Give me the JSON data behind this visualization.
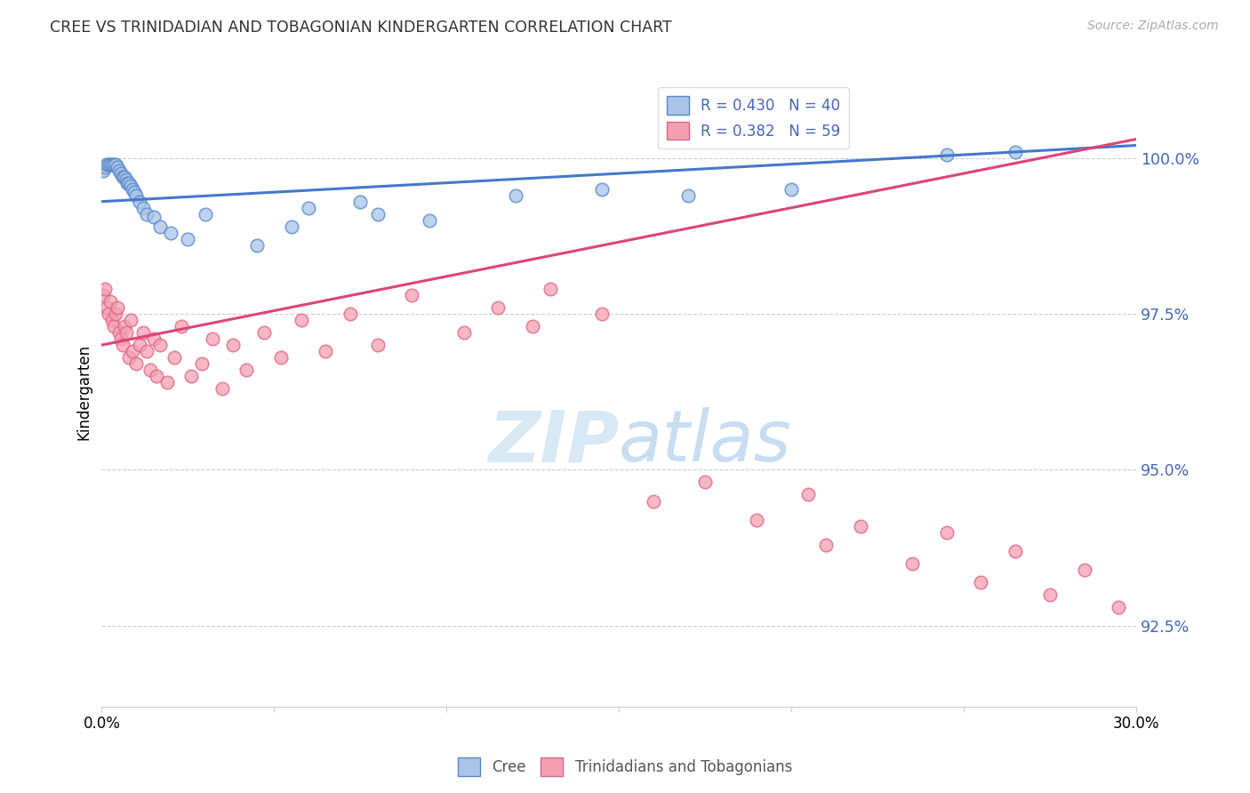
{
  "title": "CREE VS TRINIDADIAN AND TOBAGONIAN KINDERGARTEN CORRELATION CHART",
  "source": "Source: ZipAtlas.com",
  "ylabel": "Kindergarten",
  "y_tick_labels": [
    "92.5%",
    "95.0%",
    "97.5%",
    "100.0%"
  ],
  "y_tick_values": [
    92.5,
    95.0,
    97.5,
    100.0
  ],
  "x_min": 0.0,
  "x_max": 30.0,
  "y_min": 91.2,
  "y_max": 101.3,
  "legend_blue_label": "R = 0.430   N = 40",
  "legend_pink_label": "R = 0.382   N = 59",
  "cree_label": "Cree",
  "trini_label": "Trinidadians and Tobagonians",
  "blue_fill": "#aac4e8",
  "pink_fill": "#f5a0b0",
  "blue_edge": "#5588cc",
  "pink_edge": "#dd6688",
  "blue_line": "#4477cc",
  "pink_line": "#dd4477",
  "label_color": "#4466bb",
  "grid_color": "#cccccc",
  "watermark_zip_color": "#d8e8f5",
  "watermark_atlas_color": "#c8ddf0",
  "cree_x": [
    0.05,
    0.1,
    0.15,
    0.2,
    0.25,
    0.3,
    0.35,
    0.4,
    0.45,
    0.5,
    0.55,
    0.6,
    0.65,
    0.7,
    0.75,
    0.8,
    0.85,
    0.9,
    0.95,
    1.0,
    1.1,
    1.2,
    1.3,
    1.5,
    1.7,
    2.0,
    2.5,
    3.0,
    4.5,
    5.5,
    6.0,
    7.5,
    8.0,
    9.5,
    12.0,
    14.5,
    17.0,
    20.0,
    24.5,
    26.5
  ],
  "cree_y": [
    99.8,
    99.85,
    99.9,
    99.9,
    99.9,
    99.9,
    99.9,
    99.9,
    99.85,
    99.8,
    99.75,
    99.7,
    99.7,
    99.65,
    99.6,
    99.6,
    99.55,
    99.5,
    99.45,
    99.4,
    99.3,
    99.2,
    99.1,
    99.05,
    98.9,
    98.8,
    98.7,
    99.1,
    98.6,
    98.9,
    99.2,
    99.3,
    99.1,
    99.0,
    99.4,
    99.5,
    99.4,
    99.5,
    100.05,
    100.1
  ],
  "trini_x": [
    0.05,
    0.1,
    0.15,
    0.2,
    0.25,
    0.3,
    0.35,
    0.4,
    0.45,
    0.5,
    0.55,
    0.6,
    0.65,
    0.7,
    0.8,
    0.85,
    0.9,
    1.0,
    1.1,
    1.2,
    1.3,
    1.4,
    1.5,
    1.6,
    1.7,
    1.9,
    2.1,
    2.3,
    2.6,
    2.9,
    3.2,
    3.5,
    3.8,
    4.2,
    4.7,
    5.2,
    5.8,
    6.5,
    7.2,
    8.0,
    9.0,
    10.5,
    11.5,
    12.5,
    13.0,
    14.5,
    16.0,
    17.5,
    19.0,
    20.5,
    21.0,
    22.0,
    23.5,
    24.5,
    25.5,
    26.5,
    27.5,
    28.5,
    29.5
  ],
  "trini_y": [
    97.8,
    97.9,
    97.6,
    97.5,
    97.7,
    97.4,
    97.3,
    97.5,
    97.6,
    97.2,
    97.1,
    97.0,
    97.3,
    97.2,
    96.8,
    97.4,
    96.9,
    96.7,
    97.0,
    97.2,
    96.9,
    96.6,
    97.1,
    96.5,
    97.0,
    96.4,
    96.8,
    97.3,
    96.5,
    96.7,
    97.1,
    96.3,
    97.0,
    96.6,
    97.2,
    96.8,
    97.4,
    96.9,
    97.5,
    97.0,
    97.8,
    97.2,
    97.6,
    97.3,
    97.9,
    97.5,
    94.5,
    94.8,
    94.2,
    94.6,
    93.8,
    94.1,
    93.5,
    94.0,
    93.2,
    93.7,
    93.0,
    93.4,
    92.8
  ]
}
